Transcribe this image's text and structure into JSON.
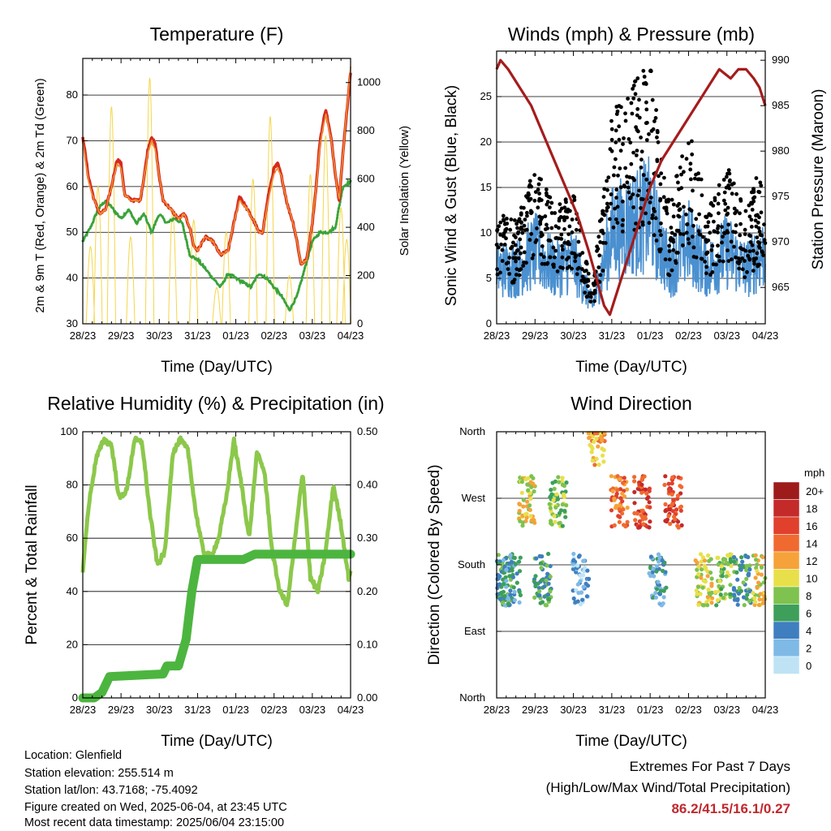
{
  "chart_data": [
    {
      "type": "line",
      "title": "Temperature (F)",
      "xlabel": "Time (Day/UTC)",
      "ylabel": "2m & 9m T (Red, Orange) & 2m Td (Green)",
      "y2label": "Solar Insolation (Yellow)",
      "x_ticks": [
        "28/23",
        "29/23",
        "30/23",
        "31/23",
        "01/23",
        "02/23",
        "03/23",
        "04/23"
      ],
      "xlim_days": [
        0,
        7
      ],
      "ylim": [
        30,
        88
      ],
      "y_ticks": [
        30,
        40,
        50,
        60,
        70,
        80
      ],
      "y2lim": [
        0,
        1100
      ],
      "y2_ticks": [
        0,
        200,
        400,
        600,
        800,
        1000
      ],
      "grid": "horizontal",
      "series": [
        {
          "color": "#d62a1e",
          "x": [
            0,
            0.15,
            0.3,
            0.45,
            0.6,
            0.75,
            0.9,
            1.0,
            1.1,
            1.3,
            1.5,
            1.6,
            1.7,
            1.8,
            1.9,
            2.0,
            2.1,
            2.3,
            2.5,
            2.65,
            2.8,
            2.9,
            3.0,
            3.2,
            3.4,
            3.6,
            3.8,
            3.95,
            4.1,
            4.3,
            4.5,
            4.6,
            4.7,
            4.85,
            5.0,
            5.1,
            5.2,
            5.35,
            5.5,
            5.6,
            5.7,
            5.85,
            6.0,
            6.1,
            6.2,
            6.35,
            6.5,
            6.6,
            6.7,
            6.85,
            7.0
          ],
          "y": [
            71,
            62,
            57,
            54,
            55,
            60,
            66,
            65,
            58,
            57,
            57,
            62,
            68,
            71,
            69,
            62,
            57,
            55,
            53,
            54,
            51,
            47,
            46,
            49,
            48,
            45,
            46,
            52,
            58,
            55,
            52,
            50,
            50,
            58,
            64,
            65,
            62,
            56,
            52,
            48,
            43,
            44,
            52,
            60,
            70,
            77,
            70,
            63,
            57,
            72,
            85
          ]
        },
        {
          "color": "#f08c30",
          "x": [
            0,
            0.15,
            0.3,
            0.45,
            0.6,
            0.75,
            0.9,
            1.0,
            1.1,
            1.3,
            1.5,
            1.6,
            1.7,
            1.8,
            1.9,
            2.0,
            2.1,
            2.3,
            2.5,
            2.65,
            2.8,
            2.9,
            3.0,
            3.2,
            3.4,
            3.6,
            3.8,
            3.95,
            4.1,
            4.3,
            4.5,
            4.6,
            4.7,
            4.85,
            5.0,
            5.1,
            5.2,
            5.35,
            5.5,
            5.6,
            5.7,
            5.85,
            6.0,
            6.1,
            6.2,
            6.35,
            6.5,
            6.6,
            6.7,
            6.85,
            7.0
          ],
          "y": [
            70,
            61,
            57,
            54,
            55,
            60,
            65,
            64,
            58,
            57,
            57,
            62,
            67,
            70,
            68,
            62,
            57,
            55,
            53,
            54,
            51,
            47,
            46,
            49,
            48,
            45,
            46,
            52,
            57,
            55,
            52,
            50,
            50,
            57,
            63,
            64,
            62,
            56,
            52,
            48,
            43,
            44,
            52,
            60,
            69,
            76,
            70,
            63,
            57,
            72,
            86
          ]
        },
        {
          "color": "#3aa33a",
          "x": [
            0,
            0.2,
            0.4,
            0.6,
            0.8,
            1.0,
            1.2,
            1.4,
            1.6,
            1.8,
            2.0,
            2.2,
            2.4,
            2.6,
            2.8,
            3.0,
            3.2,
            3.4,
            3.6,
            3.8,
            4.0,
            4.2,
            4.4,
            4.6,
            4.8,
            5.0,
            5.2,
            5.4,
            5.6,
            5.8,
            6.0,
            6.2,
            6.4,
            6.6,
            6.8,
            7.0
          ],
          "y": [
            48,
            51,
            55,
            57,
            55,
            53,
            55,
            52,
            54,
            50,
            54,
            52,
            53,
            52,
            45,
            44,
            42,
            40,
            38,
            41,
            40,
            39,
            38,
            41,
            40,
            38,
            36,
            33,
            36,
            42,
            48,
            50,
            50,
            51,
            60,
            61
          ]
        },
        {
          "color": "#f4d64b",
          "name": "Solar insolation",
          "peaks_x": [
            0.2,
            0.4,
            0.75,
            1.25,
            1.75,
            2.35,
            2.9,
            3.5,
            3.75,
            4.45,
            4.9,
            5.4,
            5.95,
            6.35,
            6.75,
            6.9
          ],
          "peaks_y": [
            320,
            570,
            900,
            360,
            1020,
            460,
            430,
            150,
            380,
            600,
            860,
            200,
            620,
            780,
            480,
            350
          ]
        }
      ]
    },
    {
      "type": "scatter",
      "title": "Winds (mph) & Pressure (mb)",
      "xlabel": "Time (Day/UTC)",
      "ylabel": "Sonic Wind & Gust (Blue, Black)",
      "y2label": "Station Pressure (Maroon)",
      "x_ticks": [
        "28/23",
        "29/23",
        "30/23",
        "31/23",
        "01/23",
        "02/23",
        "03/23",
        "04/23"
      ],
      "xlim_days": [
        0,
        7
      ],
      "ylim": [
        0,
        30
      ],
      "y_ticks": [
        0,
        5,
        10,
        15,
        20,
        25
      ],
      "y2lim": [
        961,
        991
      ],
      "y2_ticks": [
        965,
        970,
        975,
        980,
        985,
        990
      ],
      "grid": "horizontal",
      "series": [
        {
          "color": "#000000",
          "name": "gust",
          "x": [
            0,
            0.5,
            1.0,
            1.5,
            2.0,
            2.5,
            3.0,
            3.5,
            4.0,
            4.5,
            5.0,
            5.5,
            6.0,
            6.5,
            7.0
          ],
          "y": [
            9,
            8,
            12,
            9,
            10,
            3,
            16,
            18,
            20,
            9,
            15,
            9,
            12,
            9,
            13
          ]
        },
        {
          "color": "#4a90d0",
          "name": "wind",
          "x": [
            0,
            0.5,
            1.0,
            1.5,
            2.0,
            2.5,
            3.0,
            3.5,
            4.0,
            4.5,
            5.0,
            5.5,
            6.0,
            6.5,
            7.0
          ],
          "y": [
            6,
            6,
            8,
            6,
            7,
            2,
            10,
            11,
            12,
            6,
            9,
            6,
            8,
            6,
            8
          ]
        },
        {
          "color": "#a51c1c",
          "name": "pressure",
          "x": [
            0,
            0.1,
            0.3,
            0.6,
            0.9,
            1.2,
            1.5,
            1.8,
            2.1,
            2.4,
            2.6,
            2.8,
            2.95,
            3.1,
            3.4,
            3.7,
            4.0,
            4.3,
            4.6,
            4.9,
            5.2,
            5.5,
            5.8,
            6.1,
            6.3,
            6.5,
            6.7,
            6.85,
            7.0
          ],
          "y": [
            989,
            990,
            989,
            987,
            985,
            982,
            979,
            976,
            973,
            969,
            966,
            963,
            962,
            964,
            968,
            972,
            976,
            979,
            981,
            983,
            985,
            987,
            989,
            988,
            989,
            989,
            988,
            987,
            985
          ]
        }
      ]
    },
    {
      "type": "line",
      "title": "Relative Humidity (%) & Precipitation (in)",
      "xlabel": "Time (Day/UTC)",
      "ylabel": "Percent & Total Rainfall",
      "x_ticks": [
        "28/23",
        "29/23",
        "30/23",
        "31/23",
        "01/23",
        "02/23",
        "03/23",
        "04/23"
      ],
      "xlim_days": [
        0,
        7
      ],
      "ylim": [
        0,
        100
      ],
      "y_ticks": [
        0,
        20,
        40,
        60,
        80,
        100
      ],
      "y2lim": [
        0,
        0.5
      ],
      "y2_ticks": [
        "0.00",
        "0.10",
        "0.20",
        "0.30",
        "0.40",
        "0.50"
      ],
      "grid": "horizontal",
      "series": [
        {
          "color": "#8cc84b",
          "name": "RH",
          "x": [
            0,
            0.15,
            0.35,
            0.55,
            0.75,
            0.95,
            1.15,
            1.35,
            1.55,
            1.75,
            1.95,
            2.15,
            2.35,
            2.55,
            2.75,
            2.95,
            3.15,
            3.35,
            3.55,
            3.75,
            3.95,
            4.15,
            4.35,
            4.55,
            4.75,
            4.95,
            5.15,
            5.35,
            5.55,
            5.75,
            5.95,
            6.15,
            6.35,
            6.55,
            6.75,
            6.95,
            7.0
          ],
          "y": [
            48,
            72,
            90,
            97,
            95,
            75,
            78,
            97,
            96,
            70,
            50,
            55,
            92,
            97,
            93,
            70,
            55,
            53,
            60,
            75,
            97,
            80,
            60,
            92,
            85,
            55,
            40,
            35,
            60,
            85,
            45,
            40,
            55,
            80,
            65,
            45,
            48
          ]
        },
        {
          "color": "#4cb53f",
          "name": "Rain",
          "x": [
            0,
            0.3,
            0.5,
            0.7,
            2.1,
            2.2,
            2.5,
            2.7,
            2.85,
            3.0,
            4.2,
            4.5,
            7.0
          ],
          "y": [
            0,
            0,
            0.01,
            0.04,
            0.045,
            0.06,
            0.06,
            0.11,
            0.2,
            0.26,
            0.26,
            0.27,
            0.27
          ]
        }
      ]
    },
    {
      "type": "scatter",
      "title": "Wind Direction",
      "xlabel": "Time (Day/UTC)",
      "ylabel": "Direction (Colored By Speed)",
      "x_ticks": [
        "28/23",
        "29/23",
        "30/23",
        "31/23",
        "01/23",
        "02/23",
        "03/23",
        "04/23"
      ],
      "xlim_days": [
        0,
        7
      ],
      "y_ticks": [
        "North",
        "East",
        "South",
        "West",
        "North"
      ],
      "grid": "horizontal",
      "legend_title": "mph",
      "legend": [
        "20+",
        "18",
        "16",
        "14",
        "12",
        "10",
        "8",
        "6",
        "4",
        "2",
        "0"
      ],
      "legend_colors": [
        "#9d1b1b",
        "#c42a2a",
        "#e0402c",
        "#f06a30",
        "#f5a23a",
        "#e8e04a",
        "#7ec24f",
        "#3d9f5a",
        "#3f7fbf",
        "#7fb9e6",
        "#bfe3f5"
      ],
      "points": [
        {
          "x": 0.2,
          "dir": "S",
          "spd": 6
        },
        {
          "x": 0.4,
          "dir": "S",
          "spd": 4
        },
        {
          "x": 0.8,
          "dir": "W",
          "spd": 10
        },
        {
          "x": 1.2,
          "dir": "S",
          "spd": 6
        },
        {
          "x": 1.6,
          "dir": "W",
          "spd": 8
        },
        {
          "x": 2.2,
          "dir": "S",
          "spd": 2
        },
        {
          "x": 2.6,
          "dir": "N",
          "spd": 12
        },
        {
          "x": 3.2,
          "dir": "W",
          "spd": 14
        },
        {
          "x": 3.8,
          "dir": "W",
          "spd": 16
        },
        {
          "x": 4.2,
          "dir": "S",
          "spd": 4
        },
        {
          "x": 4.6,
          "dir": "W",
          "spd": 16
        },
        {
          "x": 5.4,
          "dir": "S",
          "spd": 10
        },
        {
          "x": 5.9,
          "dir": "S",
          "spd": 8
        },
        {
          "x": 6.4,
          "dir": "S",
          "spd": 6
        },
        {
          "x": 6.9,
          "dir": "S",
          "spd": 10
        }
      ]
    }
  ],
  "footer": {
    "location": "Location: Glenfield",
    "elevation": "Station elevation: 255.514 m",
    "latlon": "Station lat/lon: 43.7168; -75.4092",
    "created": "Figure created on Wed, 2025-06-04, at 23:45 UTC",
    "recent": "Most recent data timestamp: 2025/06/04 23:15:00"
  },
  "extremes": {
    "title": "Extremes For Past 7 Days",
    "subtitle": "(High/Low/Max Wind/Total Precipitation)",
    "values": "86.2/41.5/16.1/0.27"
  }
}
